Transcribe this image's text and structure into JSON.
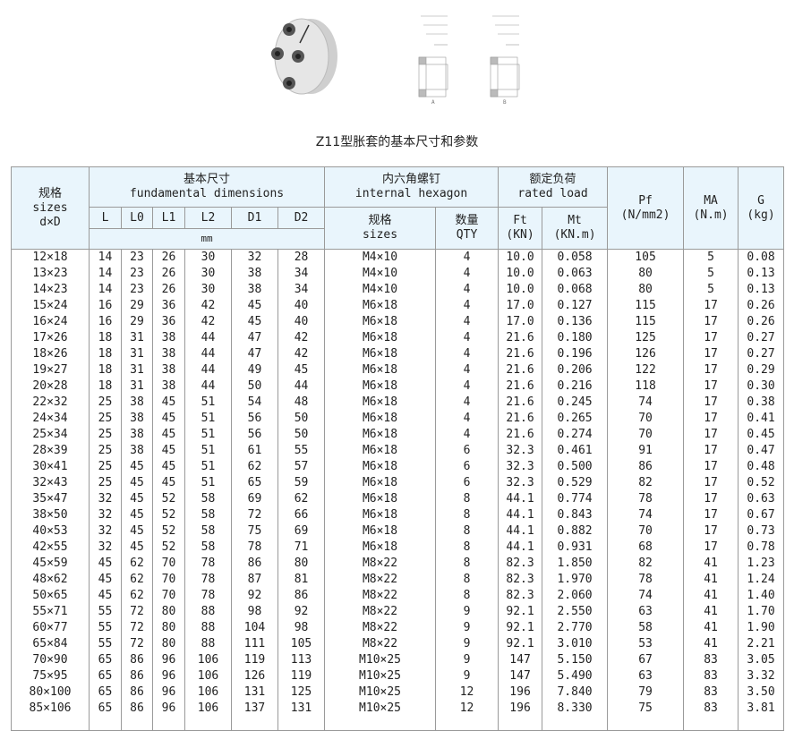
{
  "title": "Z11型胀套的基本尺寸和参数",
  "header": {
    "sizes_cn": "规格",
    "sizes_en": "sizes",
    "sizes_dim": "d×D",
    "fund_cn": "基本尺寸",
    "fund_en": "fundamental dimensions",
    "hex_cn": "内六角螺钉",
    "hex_en": "internal hexagon",
    "load_cn": "额定负荷",
    "load_en": "rated load",
    "pf": "Pf",
    "pf_unit": "(N/mm2)",
    "ma": "MA",
    "ma_unit": "(N.m)",
    "g": "G",
    "g_unit": "(kg)",
    "cols": [
      "L",
      "L0",
      "L1",
      "L2",
      "D1",
      "D2"
    ],
    "mm": "mm",
    "screw_size_cn": "规格",
    "screw_size_en": "sizes",
    "qty_cn": "数量",
    "qty_en": "QTY",
    "ft": "Ft",
    "ft_unit": "(KN)",
    "mt": "Mt",
    "mt_unit": "(KN.m)"
  },
  "rows": [
    [
      "12×18",
      "14",
      "23",
      "26",
      "30",
      "32",
      "28",
      "M4×10",
      "4",
      "10.0",
      "0.058",
      "105",
      "5",
      "0.08"
    ],
    [
      "13×23",
      "14",
      "23",
      "26",
      "30",
      "38",
      "34",
      "M4×10",
      "4",
      "10.0",
      "0.063",
      "80",
      "5",
      "0.13"
    ],
    [
      "14×23",
      "14",
      "23",
      "26",
      "30",
      "38",
      "34",
      "M4×10",
      "4",
      "10.0",
      "0.068",
      "80",
      "5",
      "0.13"
    ],
    [
      "15×24",
      "16",
      "29",
      "36",
      "42",
      "45",
      "40",
      "M6×18",
      "4",
      "17.0",
      "0.127",
      "115",
      "17",
      "0.26"
    ],
    [
      "16×24",
      "16",
      "29",
      "36",
      "42",
      "45",
      "40",
      "M6×18",
      "4",
      "17.0",
      "0.136",
      "115",
      "17",
      "0.26"
    ],
    [
      "17×26",
      "18",
      "31",
      "38",
      "44",
      "47",
      "42",
      "M6×18",
      "4",
      "21.6",
      "0.180",
      "125",
      "17",
      "0.27"
    ],
    [
      "18×26",
      "18",
      "31",
      "38",
      "44",
      "47",
      "42",
      "M6×18",
      "4",
      "21.6",
      "0.196",
      "126",
      "17",
      "0.27"
    ],
    [
      "19×27",
      "18",
      "31",
      "38",
      "44",
      "49",
      "45",
      "M6×18",
      "4",
      "21.6",
      "0.206",
      "122",
      "17",
      "0.29"
    ],
    [
      "20×28",
      "18",
      "31",
      "38",
      "44",
      "50",
      "44",
      "M6×18",
      "4",
      "21.6",
      "0.216",
      "118",
      "17",
      "0.30"
    ],
    [
      "22×32",
      "25",
      "38",
      "45",
      "51",
      "54",
      "48",
      "M6×18",
      "4",
      "21.6",
      "0.245",
      "74",
      "17",
      "0.38"
    ],
    [
      "24×34",
      "25",
      "38",
      "45",
      "51",
      "56",
      "50",
      "M6×18",
      "4",
      "21.6",
      "0.265",
      "70",
      "17",
      "0.41"
    ],
    [
      "25×34",
      "25",
      "38",
      "45",
      "51",
      "56",
      "50",
      "M6×18",
      "4",
      "21.6",
      "0.274",
      "70",
      "17",
      "0.45"
    ],
    [
      "28×39",
      "25",
      "38",
      "45",
      "51",
      "61",
      "55",
      "M6×18",
      "6",
      "32.3",
      "0.461",
      "91",
      "17",
      "0.47"
    ],
    [
      "30×41",
      "25",
      "45",
      "45",
      "51",
      "62",
      "57",
      "M6×18",
      "6",
      "32.3",
      "0.500",
      "86",
      "17",
      "0.48"
    ],
    [
      "32×43",
      "25",
      "45",
      "45",
      "51",
      "65",
      "59",
      "M6×18",
      "6",
      "32.3",
      "0.529",
      "82",
      "17",
      "0.52"
    ],
    [
      "35×47",
      "32",
      "45",
      "52",
      "58",
      "69",
      "62",
      "M6×18",
      "8",
      "44.1",
      "0.774",
      "78",
      "17",
      "0.63"
    ],
    [
      "38×50",
      "32",
      "45",
      "52",
      "58",
      "72",
      "66",
      "M6×18",
      "8",
      "44.1",
      "0.843",
      "74",
      "17",
      "0.67"
    ],
    [
      "40×53",
      "32",
      "45",
      "52",
      "58",
      "75",
      "69",
      "M6×18",
      "8",
      "44.1",
      "0.882",
      "70",
      "17",
      "0.73"
    ],
    [
      "42×55",
      "32",
      "45",
      "52",
      "58",
      "78",
      "71",
      "M6×18",
      "8",
      "44.1",
      "0.931",
      "68",
      "17",
      "0.78"
    ],
    [
      "45×59",
      "45",
      "62",
      "70",
      "78",
      "86",
      "80",
      "M8×22",
      "8",
      "82.3",
      "1.850",
      "82",
      "41",
      "1.23"
    ],
    [
      "48×62",
      "45",
      "62",
      "70",
      "78",
      "87",
      "81",
      "M8×22",
      "8",
      "82.3",
      "1.970",
      "78",
      "41",
      "1.24"
    ],
    [
      "50×65",
      "45",
      "62",
      "70",
      "78",
      "92",
      "86",
      "M8×22",
      "8",
      "82.3",
      "2.060",
      "74",
      "41",
      "1.40"
    ],
    [
      "55×71",
      "55",
      "72",
      "80",
      "88",
      "98",
      "92",
      "M8×22",
      "9",
      "92.1",
      "2.550",
      "63",
      "41",
      "1.70"
    ],
    [
      "60×77",
      "55",
      "72",
      "80",
      "88",
      "104",
      "98",
      "M8×22",
      "9",
      "92.1",
      "2.770",
      "58",
      "41",
      "1.90"
    ],
    [
      "65×84",
      "55",
      "72",
      "80",
      "88",
      "111",
      "105",
      "M8×22",
      "9",
      "92.1",
      "3.010",
      "53",
      "41",
      "2.21"
    ],
    [
      "70×90",
      "65",
      "86",
      "96",
      "106",
      "119",
      "113",
      "M10×25",
      "9",
      "147",
      "5.150",
      "67",
      "83",
      "3.05"
    ],
    [
      "75×95",
      "65",
      "86",
      "96",
      "106",
      "126",
      "119",
      "M10×25",
      "9",
      "147",
      "5.490",
      "63",
      "83",
      "3.32"
    ],
    [
      "80×100",
      "65",
      "86",
      "96",
      "106",
      "131",
      "125",
      "M10×25",
      "12",
      "196",
      "7.840",
      "79",
      "83",
      "3.50"
    ],
    [
      "85×106",
      "65",
      "86",
      "96",
      "106",
      "137",
      "131",
      "M10×25",
      "12",
      "196",
      "8.330",
      "75",
      "83",
      "3.81"
    ]
  ],
  "drawing_labels": [
    "A",
    "B"
  ]
}
